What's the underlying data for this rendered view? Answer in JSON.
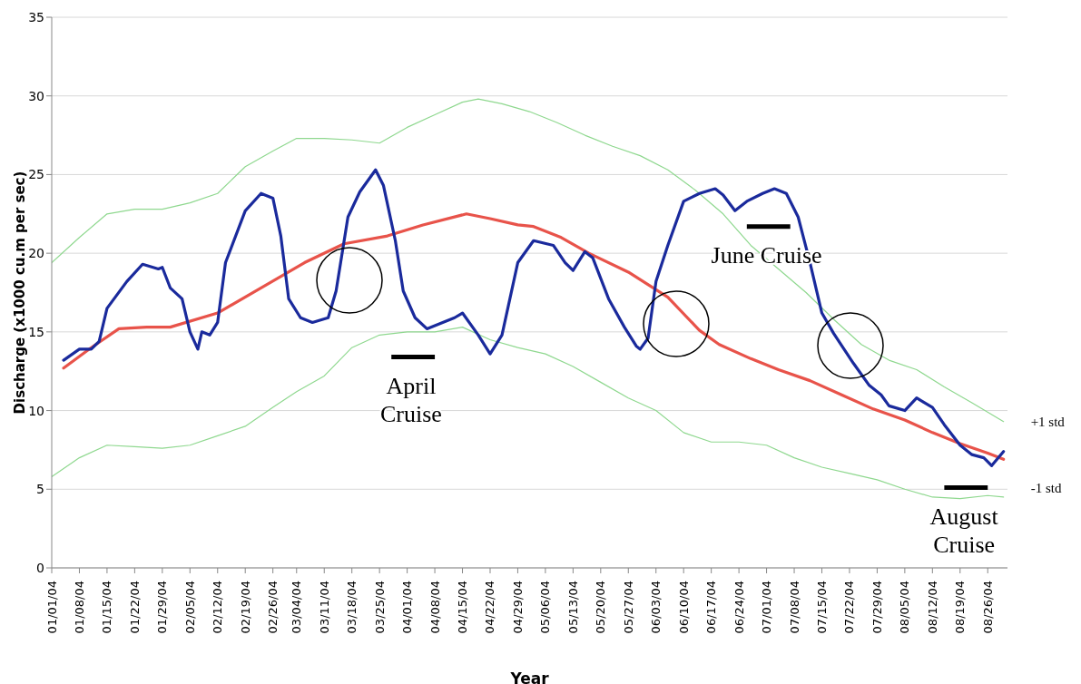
{
  "chart_data": {
    "type": "line",
    "xlabel": "Year",
    "ylabel": "Discharge (x1000 cu.m per sec)",
    "ylim": [
      0,
      35
    ],
    "yticks": [
      0,
      5,
      10,
      15,
      20,
      25,
      30,
      35
    ],
    "grid": "y",
    "xlim": [
      "--01-01",
      "--08-31"
    ],
    "xticks": [
      {
        "value": "--01-01",
        "label": "01/01/04"
      },
      {
        "value": "--01-08",
        "label": "01/08/04"
      },
      {
        "value": "--01-15",
        "label": "01/15/04"
      },
      {
        "value": "--01-22",
        "label": "01/22/04"
      },
      {
        "value": "--01-29",
        "label": "01/29/04"
      },
      {
        "value": "--02-05",
        "label": "02/05/04"
      },
      {
        "value": "--02-12",
        "label": "02/12/04"
      },
      {
        "value": "--02-19",
        "label": "02/19/04"
      },
      {
        "value": "--02-26",
        "label": "02/26/04"
      },
      {
        "value": "--03-04",
        "label": "03/04/04"
      },
      {
        "value": "--03-11",
        "label": "03/11/04"
      },
      {
        "value": "--03-18",
        "label": "03/18/04"
      },
      {
        "value": "--03-25",
        "label": "03/25/04"
      },
      {
        "value": "--04-01",
        "label": "04/01/04"
      },
      {
        "value": "--04-08",
        "label": "04/08/04"
      },
      {
        "value": "--04-15",
        "label": "04/15/04"
      },
      {
        "value": "--04-22",
        "label": "04/22/04"
      },
      {
        "value": "--04-29",
        "label": "04/29/04"
      },
      {
        "value": "--05-06",
        "label": "05/06/04"
      },
      {
        "value": "--05-13",
        "label": "05/13/04"
      },
      {
        "value": "--05-20",
        "label": "05/20/04"
      },
      {
        "value": "--05-27",
        "label": "05/27/04"
      },
      {
        "value": "--06-03",
        "label": "06/03/04"
      },
      {
        "value": "--06-10",
        "label": "06/10/04"
      },
      {
        "value": "--06-17",
        "label": "06/17/04"
      },
      {
        "value": "--06-24",
        "label": "06/24/04"
      },
      {
        "value": "--07-01",
        "label": "07/01/04"
      },
      {
        "value": "--07-08",
        "label": "07/08/04"
      },
      {
        "value": "--07-15",
        "label": "07/15/04"
      },
      {
        "value": "--07-22",
        "label": "07/22/04"
      },
      {
        "value": "--07-29",
        "label": "07/29/04"
      },
      {
        "value": "--08-05",
        "label": "08/05/04"
      },
      {
        "value": "--08-12",
        "label": "08/12/04"
      },
      {
        "value": "--08-19",
        "label": "08/19/04"
      },
      {
        "value": "--08-26",
        "label": "08/26/04"
      }
    ],
    "marker": "none",
    "series": [
      {
        "name": "+1 std",
        "color": "#8fd88f",
        "x": [
          "--01-01",
          "--01-08",
          "--01-15",
          "--01-22",
          "--01-29",
          "--02-05",
          "--02-12",
          "--02-19",
          "--02-26",
          "--03-04",
          "--03-11",
          "--03-18",
          "--03-25",
          "--04-01",
          "--04-08",
          "--04-15",
          "--04-19",
          "--04-25",
          "--05-02",
          "--05-09",
          "--05-16",
          "--05-23",
          "--05-30",
          "--06-06",
          "--06-13",
          "--06-20",
          "--06-27",
          "--07-04",
          "--07-11",
          "--07-18",
          "--07-25",
          "--08-01",
          "--08-08",
          "--08-15",
          "--08-22",
          "--08-30"
        ],
        "values": [
          19.4,
          21.0,
          22.5,
          22.8,
          22.8,
          23.2,
          23.8,
          25.5,
          26.5,
          27.3,
          27.3,
          27.2,
          27.0,
          28.0,
          28.8,
          29.6,
          29.8,
          29.5,
          29.0,
          28.3,
          27.5,
          26.8,
          26.2,
          25.3,
          24.0,
          22.5,
          20.5,
          19.0,
          17.5,
          15.8,
          14.2,
          13.2,
          12.6,
          11.5,
          10.5,
          9.3
        ]
      },
      {
        "name": "-1 std",
        "color": "#8fd88f",
        "x": [
          "--01-01",
          "--01-08",
          "--01-15",
          "--01-22",
          "--01-29",
          "--02-05",
          "--02-12",
          "--02-19",
          "--02-26",
          "--03-04",
          "--03-11",
          "--03-18",
          "--03-25",
          "--04-01",
          "--04-08",
          "--04-15",
          "--04-22",
          "--04-29",
          "--05-06",
          "--05-13",
          "--05-20",
          "--05-27",
          "--06-03",
          "--06-10",
          "--06-17",
          "--06-24",
          "--07-01",
          "--07-08",
          "--07-15",
          "--07-22",
          "--07-29",
          "--08-05",
          "--08-12",
          "--08-19",
          "--08-26",
          "--08-30"
        ],
        "values": [
          5.8,
          7.0,
          7.8,
          7.7,
          7.6,
          7.8,
          8.4,
          9.0,
          10.2,
          11.2,
          12.2,
          14.0,
          14.8,
          15.0,
          15.0,
          15.3,
          14.5,
          14.0,
          13.6,
          12.8,
          11.8,
          10.8,
          10.0,
          8.6,
          8.0,
          8.0,
          7.8,
          7.0,
          6.4,
          6.0,
          5.6,
          5.0,
          4.5,
          4.4,
          4.6,
          4.5
        ]
      },
      {
        "color": "#e8534a",
        "x": [
          "--01-04",
          "--01-11",
          "--01-18",
          "--01-25",
          "--01-31",
          "--02-12",
          "--02-23",
          "--03-06",
          "--03-16",
          "--03-27",
          "--04-05",
          "--04-16",
          "--04-22",
          "--04-29",
          "--05-03",
          "--05-10",
          "--05-17",
          "--05-27",
          "--06-06",
          "--06-14",
          "--06-19",
          "--06-27",
          "--07-04",
          "--07-12",
          "--07-20",
          "--07-28",
          "--08-05",
          "--08-12",
          "--08-19",
          "--08-26",
          "--08-30"
        ],
        "values": [
          12.7,
          14.0,
          15.2,
          15.3,
          15.3,
          16.2,
          17.8,
          19.4,
          20.6,
          21.1,
          21.8,
          22.5,
          22.2,
          21.8,
          21.7,
          21.0,
          20.0,
          18.8,
          17.2,
          15.1,
          14.2,
          13.3,
          12.6,
          11.9,
          11.0,
          10.1,
          9.4,
          8.6,
          7.9,
          7.3,
          6.9
        ]
      },
      {
        "color": "#1a2a9c",
        "x": [
          "--01-04",
          "--01-08",
          "--01-11",
          "--01-13",
          "--01-15",
          "--01-20",
          "--01-24",
          "--01-28",
          "--01-29",
          "--01-31",
          "--02-03",
          "--02-05",
          "--02-07",
          "--02-08",
          "--02-10",
          "--02-12",
          "--02-14",
          "--02-19",
          "--02-23",
          "--02-26",
          "--02-28",
          "--03-02",
          "--03-05",
          "--03-08",
          "--03-12",
          "--03-14",
          "--03-17",
          "--03-20",
          "--03-24",
          "--03-26",
          "--03-29",
          "--03-31",
          "--04-03",
          "--04-06",
          "--04-10",
          "--04-13",
          "--04-15",
          "--04-19",
          "--04-22",
          "--04-25",
          "--04-29",
          "--05-03",
          "--05-08",
          "--05-11",
          "--05-13",
          "--05-16",
          "--05-18",
          "--05-22",
          "--05-26",
          "--05-29",
          "--05-30",
          "--06-01",
          "--06-03",
          "--06-06",
          "--06-10",
          "--06-14",
          "--06-18",
          "--06-20",
          "--06-23",
          "--06-26",
          "--06-30",
          "--07-03",
          "--07-06",
          "--07-09",
          "--07-12",
          "--07-15",
          "--07-18",
          "--07-23",
          "--07-27",
          "--07-30",
          "--08-01",
          "--08-05",
          "--08-08",
          "--08-12",
          "--08-15",
          "--08-19",
          "--08-22",
          "--08-25",
          "--08-27",
          "--08-30"
        ],
        "values": [
          13.2,
          13.9,
          13.9,
          14.4,
          16.5,
          18.2,
          19.3,
          19.0,
          19.1,
          17.8,
          17.1,
          15.0,
          13.9,
          15.0,
          14.8,
          15.6,
          19.4,
          22.7,
          23.8,
          23.5,
          21.1,
          17.1,
          15.9,
          15.6,
          15.9,
          17.6,
          22.3,
          23.9,
          25.3,
          24.3,
          20.8,
          17.6,
          15.9,
          15.2,
          15.6,
          15.9,
          16.2,
          14.8,
          13.6,
          14.8,
          19.4,
          20.8,
          20.5,
          19.4,
          18.9,
          20.1,
          19.7,
          17.1,
          15.3,
          14.1,
          13.9,
          14.6,
          18.2,
          20.5,
          23.3,
          23.8,
          24.1,
          23.7,
          22.7,
          23.3,
          23.8,
          24.1,
          23.8,
          22.3,
          19.4,
          16.2,
          14.9,
          13.0,
          11.6,
          11.0,
          10.3,
          10.0,
          10.8,
          10.2,
          9.1,
          7.8,
          7.2,
          7.0,
          6.5,
          7.4
        ]
      },
      {
        "color": "#000000",
        "x": [
          "--03-28",
          "--04-08"
        ],
        "values": [
          13.4,
          13.4
        ]
      },
      {
        "color": "#000000",
        "x": [
          "--06-26",
          "--07-07"
        ],
        "values": [
          21.7,
          21.7
        ]
      },
      {
        "color": "#000000",
        "x": [
          "--08-15",
          "--08-26"
        ],
        "values": [
          5.1,
          5.1
        ]
      }
    ],
    "annotations": [
      {
        "text": "April Cruise",
        "x": "--04-02",
        "y": 13.4
      },
      {
        "text": "June Cruise",
        "x": "--07-01",
        "y": 21.7
      },
      {
        "text": "August Cruise",
        "x": "--08-20",
        "y": 5.1
      }
    ]
  }
}
